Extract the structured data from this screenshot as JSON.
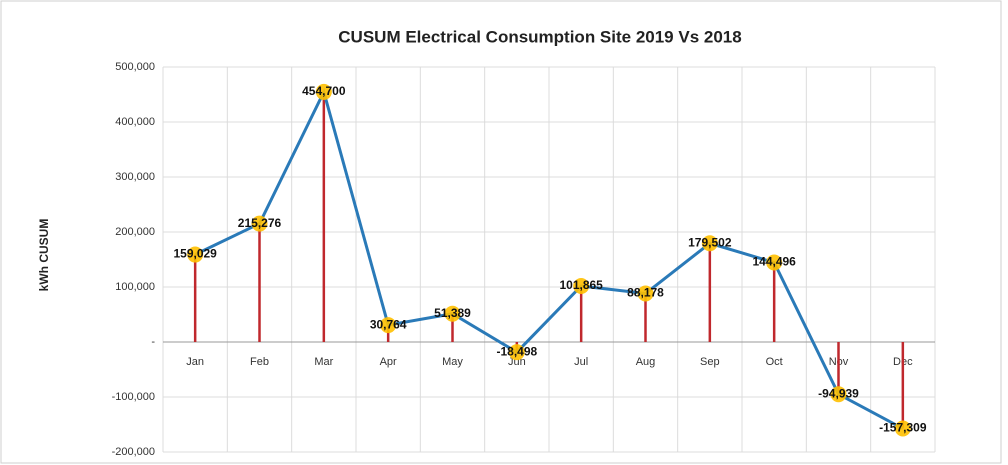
{
  "chart_data": {
    "type": "line",
    "title": "CUSUM Electrical Consumption Site  2019 Vs 2018",
    "y_label": "kWh CUSUM",
    "categories": [
      "Jan",
      "Feb",
      "Mar",
      "Apr",
      "May",
      "Jun",
      "Jul",
      "Aug",
      "Sep",
      "Oct",
      "Nov",
      "Dec"
    ],
    "values": [
      159029,
      215276,
      454700,
      30764,
      51389,
      -18498,
      101865,
      88178,
      179502,
      144496,
      -94939,
      -157309
    ],
    "value_labels": [
      "159,029",
      "215,276",
      "454,700",
      "30,764",
      "51,389",
      "-18,498",
      "101,865",
      "88,178",
      "179,502",
      "144,496",
      "-94,939",
      "-157,309"
    ],
    "color": "#2a7ab8",
    "marker_color": "#ffc000",
    "drop_lines": true,
    "drop_line_color": "#c0282d",
    "ylim": [
      -200000,
      500000
    ],
    "yticks": [
      {
        "value": -200000,
        "label": "-200,000"
      },
      {
        "value": -100000,
        "label": "-100,000"
      },
      {
        "value": 0,
        "label": "-"
      },
      {
        "value": 100000,
        "label": "100,000"
      },
      {
        "value": 200000,
        "label": "200,000"
      },
      {
        "value": 300000,
        "label": "300,000"
      },
      {
        "value": 400000,
        "label": "400,000"
      },
      {
        "value": 500000,
        "label": "500,000"
      }
    ],
    "grid": true
  }
}
